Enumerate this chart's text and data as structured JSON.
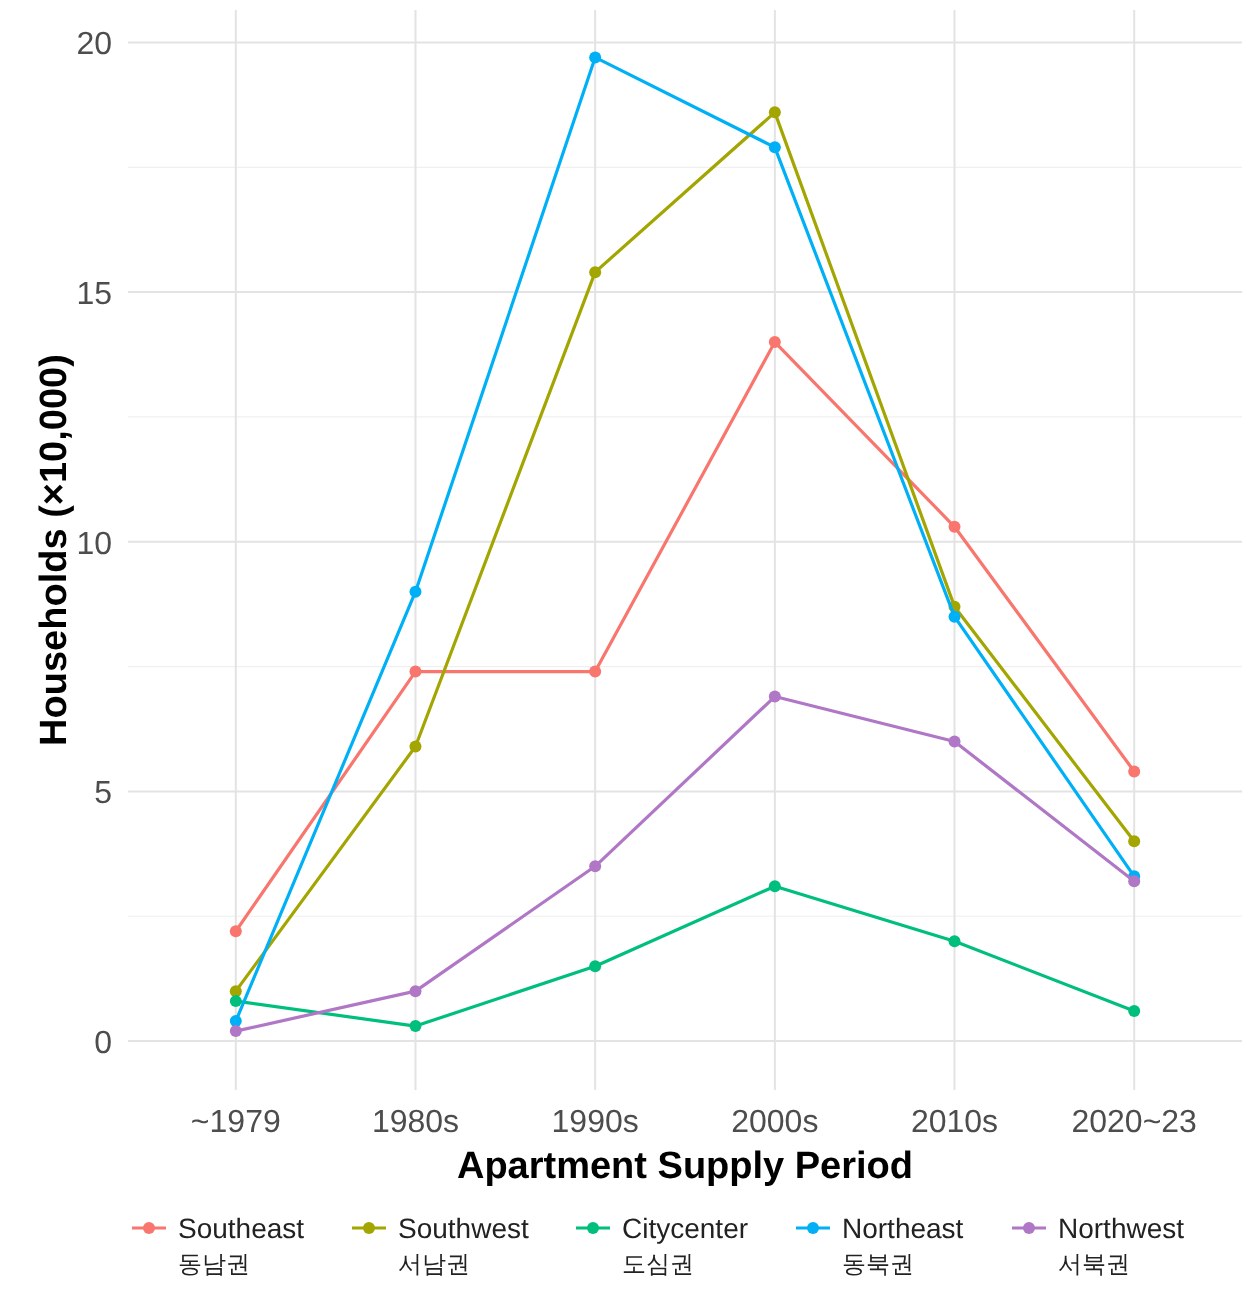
{
  "chart_data": {
    "type": "line",
    "xlabel": "Apartment Supply Period",
    "ylabel": "Households (×10,000)",
    "categories": [
      "~1979",
      "1980s",
      "1990s",
      "2000s",
      "2010s",
      "2020~23"
    ],
    "series": [
      {
        "name": "Southeast\n동남권",
        "color": "#f8766d",
        "values": [
          2.2,
          7.4,
          7.4,
          14.0,
          10.3,
          5.4
        ]
      },
      {
        "name": "Southwest\n서남권",
        "color": "#a3a500",
        "values": [
          1.0,
          5.9,
          15.4,
          18.6,
          8.7,
          4.0
        ]
      },
      {
        "name": "Citycenter\n도심권",
        "color": "#00bf7d",
        "values": [
          0.8,
          0.3,
          1.5,
          3.1,
          2.0,
          0.6
        ]
      },
      {
        "name": "Northeast\n동북권",
        "color": "#00b0f6",
        "values": [
          0.4,
          9.0,
          19.7,
          17.9,
          8.5,
          3.3
        ]
      },
      {
        "name": "Northwest\n서북권",
        "color": "#b077c6",
        "values": [
          0.2,
          1.0,
          3.5,
          6.9,
          6.0,
          3.2
        ]
      }
    ],
    "ylim": [
      -0.98,
      20.65
    ],
    "yticks": [
      0,
      5,
      10,
      15,
      20
    ],
    "grid": true,
    "legend": "bottom",
    "marker": "circle",
    "line_style": "solid"
  }
}
